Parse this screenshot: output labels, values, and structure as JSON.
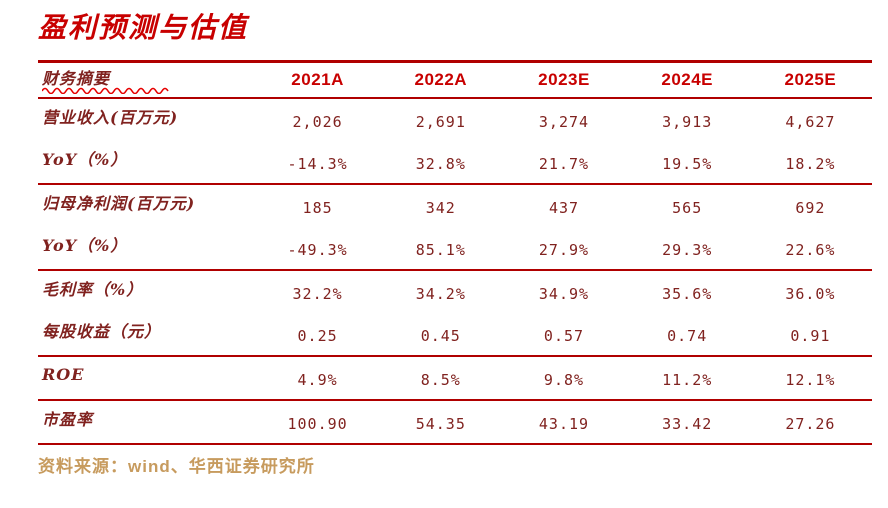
{
  "page": {
    "title": "盈利预测与估值",
    "source_note": "资料来源：wind、华西证券研究所"
  },
  "colors": {
    "title_red": "#c80000",
    "year_header_red": "#c80000",
    "rule_line_red": "#b00000",
    "body_text_maroon": "#80221f",
    "source_note_gold": "#c79b5e",
    "squiggle_underline_red": "#e60000",
    "background": "#ffffff"
  },
  "table": {
    "header": {
      "label": "财务摘要",
      "columns": [
        "2021A",
        "2022A",
        "2023E",
        "2024E",
        "2025E"
      ]
    },
    "sections": [
      {
        "rows": [
          {
            "label": "营业收入(百万元)",
            "values": [
              "2,026",
              "2,691",
              "3,274",
              "3,913",
              "4,627"
            ]
          },
          {
            "label": "YoY（%）",
            "values": [
              "-14.3%",
              "32.8%",
              "21.7%",
              "19.5%",
              "18.2%"
            ]
          }
        ]
      },
      {
        "rows": [
          {
            "label": "归母净利润(百万元)",
            "values": [
              "185",
              "342",
              "437",
              "565",
              "692"
            ]
          },
          {
            "label": "YoY（%）",
            "values": [
              "-49.3%",
              "85.1%",
              "27.9%",
              "29.3%",
              "22.6%"
            ]
          }
        ]
      },
      {
        "rows": [
          {
            "label": "毛利率（%）",
            "values": [
              "32.2%",
              "34.2%",
              "34.9%",
              "35.6%",
              "36.0%"
            ]
          },
          {
            "label": "每股收益（元）",
            "values": [
              "0.25",
              "0.45",
              "0.57",
              "0.74",
              "0.91"
            ]
          }
        ]
      },
      {
        "rows": [
          {
            "label": "ROE",
            "values": [
              "4.9%",
              "8.5%",
              "9.8%",
              "11.2%",
              "12.1%"
            ]
          }
        ]
      },
      {
        "rows": [
          {
            "label": "市盈率",
            "values": [
              "100.90",
              "54.35",
              "43.19",
              "33.42",
              "27.26"
            ]
          }
        ]
      }
    ]
  }
}
